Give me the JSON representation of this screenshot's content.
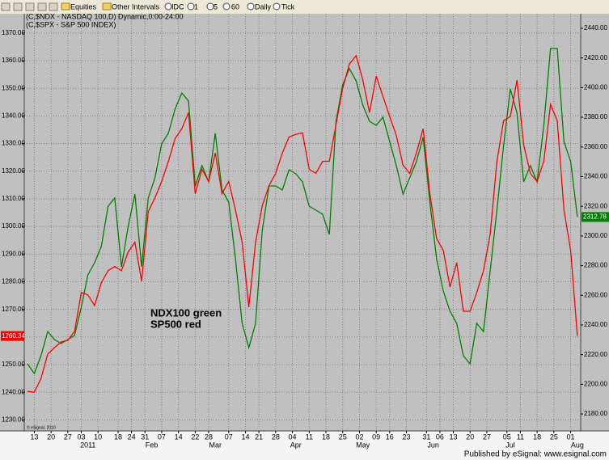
{
  "toolbar": [
    "Equities",
    "Other Intervals",
    "IDC",
    "1",
    "5",
    "60",
    "Daily",
    "Tick"
  ],
  "footer": "Published by eSignal: www.esignal.com",
  "copyright": "© eSignal, 2010",
  "chart_data": {
    "type": "line",
    "annotations": [
      "NDX100 green",
      "SP500 red"
    ],
    "x": [
      1,
      3,
      5,
      7,
      9,
      11,
      13,
      15,
      17,
      19,
      21,
      23,
      25,
      27,
      29,
      31,
      33,
      35,
      37,
      39,
      41,
      43,
      45,
      47,
      49,
      51,
      53,
      55,
      57,
      59,
      61,
      63,
      65,
      67,
      69,
      71,
      73,
      75,
      77,
      79,
      81,
      83,
      85,
      87,
      89,
      91,
      93,
      95,
      97,
      99,
      101,
      103,
      105,
      107,
      109,
      111,
      113,
      115,
      117,
      119,
      121,
      123,
      125,
      127,
      129,
      131,
      133,
      135,
      137,
      139,
      141,
      143,
      145,
      147,
      149,
      151,
      153,
      155,
      157,
      159,
      161,
      163,
      165
    ],
    "xlim": [
      0,
      166
    ],
    "xticks": [
      {
        "value": 3,
        "label": "13"
      },
      {
        "value": 8,
        "label": "20"
      },
      {
        "value": 13,
        "label": "27"
      },
      {
        "value": 17,
        "label": "03"
      },
      {
        "value": 22,
        "label": "10"
      },
      {
        "value": 28,
        "label": "18"
      },
      {
        "value": 32,
        "label": "24"
      },
      {
        "value": 36,
        "label": "31"
      },
      {
        "value": 41,
        "label": "07"
      },
      {
        "value": 46,
        "label": "14"
      },
      {
        "value": 51,
        "label": "22"
      },
      {
        "value": 55,
        "label": "28"
      },
      {
        "value": 61,
        "label": "07"
      },
      {
        "value": 66,
        "label": "14"
      },
      {
        "value": 70,
        "label": "21"
      },
      {
        "value": 75,
        "label": "28"
      },
      {
        "value": 80,
        "label": "04"
      },
      {
        "value": 85,
        "label": "11"
      },
      {
        "value": 90,
        "label": "18"
      },
      {
        "value": 95,
        "label": "25"
      },
      {
        "value": 100,
        "label": "02"
      },
      {
        "value": 105,
        "label": "09"
      },
      {
        "value": 109,
        "label": "16"
      },
      {
        "value": 114,
        "label": "23"
      },
      {
        "value": 120,
        "label": "31"
      },
      {
        "value": 124,
        "label": "06"
      },
      {
        "value": 128,
        "label": "13"
      },
      {
        "value": 133,
        "label": "20"
      },
      {
        "value": 138,
        "label": "27"
      },
      {
        "value": 144,
        "label": "05"
      },
      {
        "value": 148,
        "label": "11"
      },
      {
        "value": 153,
        "label": "18"
      },
      {
        "value": 158,
        "label": "25"
      },
      {
        "value": 163,
        "label": "01"
      }
    ],
    "xmonths": [
      {
        "value": 19,
        "label": "2011"
      },
      {
        "value": 38,
        "label": "Feb"
      },
      {
        "value": 57,
        "label": "Mar"
      },
      {
        "value": 81,
        "label": "Apr"
      },
      {
        "value": 101,
        "label": "May"
      },
      {
        "value": 122,
        "label": "Jun"
      },
      {
        "value": 145,
        "label": "Jul"
      },
      {
        "value": 165,
        "label": "Aug"
      }
    ],
    "ylim": [
      1226,
      1377
    ],
    "yticks": [
      {
        "value": 1230,
        "label": "1230.00"
      },
      {
        "value": 1240,
        "label": "1240.00"
      },
      {
        "value": 1250,
        "label": "1250.00"
      },
      {
        "value": 1260,
        "label": "1260.00"
      },
      {
        "value": 1270,
        "label": "1270.00"
      },
      {
        "value": 1280,
        "label": "1280.00"
      },
      {
        "value": 1290,
        "label": "1290.00"
      },
      {
        "value": 1300,
        "label": "1300.00"
      },
      {
        "value": 1310,
        "label": "1310.00"
      },
      {
        "value": 1320,
        "label": "1320.00"
      },
      {
        "value": 1330,
        "label": "1330.00"
      },
      {
        "value": 1340,
        "label": "1340.00"
      },
      {
        "value": 1350,
        "label": "1350.00"
      },
      {
        "value": 1360,
        "label": "1360.00"
      },
      {
        "value": 1370,
        "label": "1370.00"
      }
    ],
    "y2lim": [
      2168.6,
      2449.8
    ],
    "y2ticks": [
      {
        "value": 2180,
        "label": "2180.00"
      },
      {
        "value": 2200,
        "label": "2200.00"
      },
      {
        "value": 2220,
        "label": "2220.00"
      },
      {
        "value": 2240,
        "label": "2240.00"
      },
      {
        "value": 2260,
        "label": "2260.00"
      },
      {
        "value": 2280,
        "label": "2280.00"
      },
      {
        "value": 2300,
        "label": "2300.00"
      },
      {
        "value": 2320,
        "label": "2320.00"
      },
      {
        "value": 2340,
        "label": "2340.00"
      },
      {
        "value": 2360,
        "label": "2360.00"
      },
      {
        "value": 2380,
        "label": "2380.00"
      },
      {
        "value": 2400,
        "label": "2400.00"
      },
      {
        "value": 2420,
        "label": "2420.00"
      },
      {
        "value": 2440,
        "label": "2440.00"
      }
    ],
    "grid": true,
    "series": [
      {
        "name": "(C,$NDX - NASDAQ 100,D) Dynamic,0:00-24:00",
        "color": "#008000",
        "axis": "y2",
        "values": [
          2213.8,
          2207.3,
          2219.3,
          2235.6,
          2230.2,
          2227.5,
          2230.2,
          2232.9,
          2252.0,
          2273.8,
          2282.0,
          2292.9,
          2320.1,
          2325.6,
          2279.2,
          2306.5,
          2328.3,
          2279.2,
          2325.6,
          2339.2,
          2362.1,
          2369.2,
          2385.5,
          2396.4,
          2391.0,
          2333.7,
          2347.4,
          2336.5,
          2369.2,
          2331.0,
          2322.8,
          2284.7,
          2241.1,
          2224.7,
          2241.1,
          2303.8,
          2333.7,
          2333.7,
          2331.0,
          2344.6,
          2341.9,
          2336.5,
          2320.1,
          2317.4,
          2314.7,
          2301.0,
          2377.3,
          2401.9,
          2412.8,
          2404.6,
          2388.2,
          2377.3,
          2374.6,
          2380.1,
          2363.7,
          2347.4,
          2328.3,
          2339.2,
          2350.1,
          2366.4,
          2322.8,
          2284.7,
          2262.9,
          2249.3,
          2241.1,
          2219.3,
          2213.8,
          2241.1,
          2235.6,
          2276.5,
          2317.4,
          2361.0,
          2399.1,
          2382.8,
          2336.5,
          2347.4,
          2336.5,
          2374.6,
          2426.4,
          2426.4,
          2363.7,
          2350.1,
          2312.78
        ]
      },
      {
        "name": "(C,$SPX - S&P 500 INDEX)",
        "color": "#ff0000",
        "axis": "y",
        "values": [
          1240.3,
          1240.0,
          1245.0,
          1253.8,
          1256.1,
          1258.2,
          1258.8,
          1262.0,
          1276.1,
          1275.2,
          1271.4,
          1279.6,
          1284.0,
          1285.5,
          1284.0,
          1290.8,
          1294.3,
          1280.2,
          1305.4,
          1310.4,
          1316.3,
          1323.6,
          1331.8,
          1335.4,
          1341.2,
          1311.9,
          1320.7,
          1316.3,
          1326.6,
          1311.9,
          1316.3,
          1306.0,
          1294.3,
          1270.8,
          1294.3,
          1307.5,
          1314.8,
          1319.2,
          1326.6,
          1332.4,
          1333.3,
          1333.9,
          1320.7,
          1319.2,
          1323.6,
          1323.6,
          1336.8,
          1350.0,
          1358.8,
          1361.8,
          1353.0,
          1341.2,
          1354.4,
          1347.1,
          1339.8,
          1333.0,
          1322.2,
          1319.2,
          1326.6,
          1335.4,
          1311.9,
          1295.7,
          1291.3,
          1278.1,
          1286.9,
          1269.3,
          1269.3,
          1276.1,
          1284.0,
          1297.2,
          1323.6,
          1338.3,
          1339.8,
          1353.0,
          1329.5,
          1319.2,
          1316.3,
          1323.6,
          1344.2,
          1338.3,
          1306.0,
          1291.3,
          1260.34
        ]
      }
    ]
  }
}
